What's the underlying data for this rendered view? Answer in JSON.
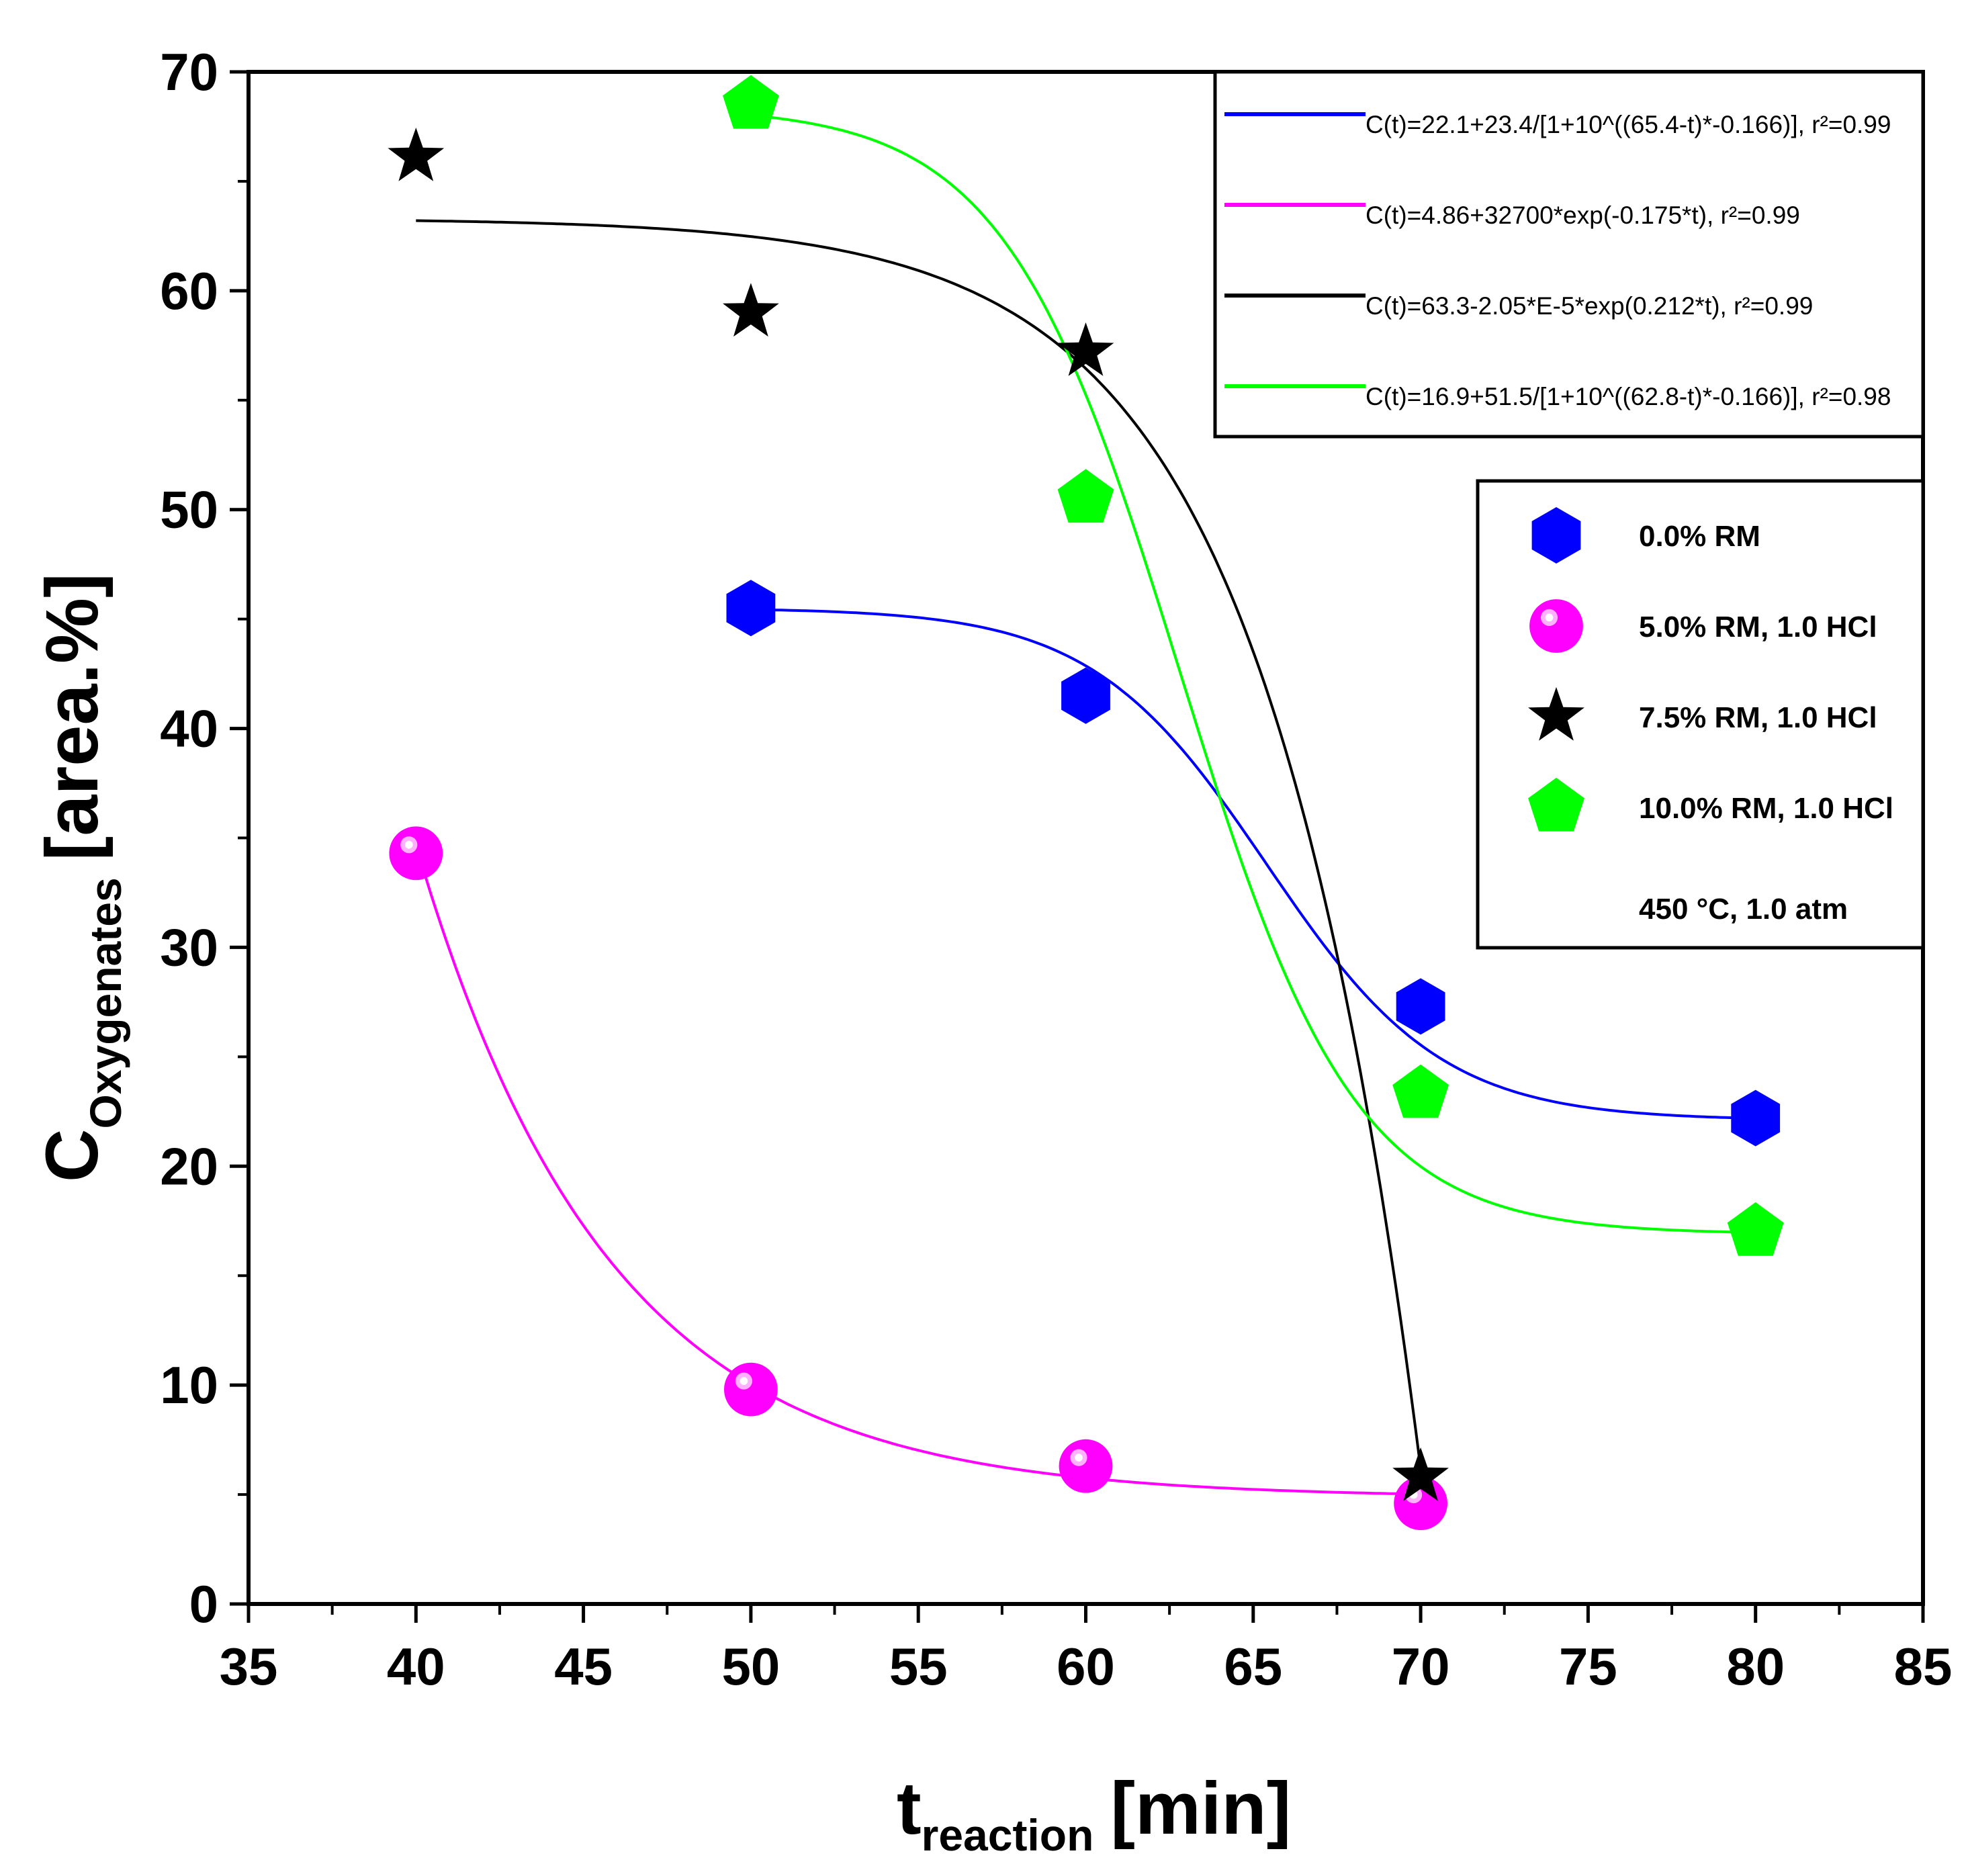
{
  "chart_data": {
    "type": "scatter",
    "xlabel": {
      "main": "t",
      "sub": "reaction",
      "unit": "[min]"
    },
    "ylabel": {
      "main": "C",
      "sub": "Oxygenates",
      "unit": "[area.%]"
    },
    "xlim": [
      35,
      85
    ],
    "ylim": [
      0,
      70
    ],
    "xticks": [
      "35",
      "40",
      "45",
      "50",
      "55",
      "60",
      "65",
      "70",
      "75",
      "80",
      "85"
    ],
    "yticks": [
      "0",
      "10",
      "20",
      "30",
      "40",
      "50",
      "60",
      "70"
    ],
    "grid": false,
    "series": [
      {
        "name": "0.0% RM",
        "color": "#0000ff",
        "marker": "hexagon",
        "x": [
          50,
          60,
          70,
          80
        ],
        "y": [
          45.5,
          41.5,
          27.3,
          22.2
        ],
        "fit": {
          "label": "C(t)=22.1+23.4/[1+10^((65.4-t)*-0.166)], r²=0.99",
          "type": "logistic",
          "A2": 22.1,
          "A1add": 23.4,
          "x0": 65.4,
          "p": -0.166,
          "range": [
            50,
            80
          ]
        }
      },
      {
        "name": "5.0% RM, 1.0 HCl",
        "color": "#ff00ff",
        "marker": "sphere",
        "x": [
          40,
          50,
          60,
          70
        ],
        "y": [
          34.3,
          9.8,
          6.3,
          4.6
        ],
        "fit": {
          "label": "C(t)=4.86+32700*exp(-0.175*t), r²=0.99",
          "type": "exp",
          "a": 4.86,
          "b": 32700,
          "k": -0.175,
          "range": [
            40,
            70
          ]
        }
      },
      {
        "name": "7.5% RM, 1.0 HCl",
        "color": "#000000",
        "marker": "star",
        "x": [
          40,
          50,
          60,
          70
        ],
        "y": [
          66.1,
          59.0,
          57.2,
          5.8
        ],
        "fit": {
          "label": "C(t)=63.3-2.05*E-5*exp(0.212*t), r²=0.99",
          "type": "exp",
          "a": 63.3,
          "b": -2.05e-05,
          "k": 0.212,
          "range": [
            40,
            70
          ]
        }
      },
      {
        "name": "10.0% RM, 1.0 HCl",
        "color": "#00ff00",
        "marker": "pentagon",
        "x": [
          50,
          60,
          70,
          80
        ],
        "y": [
          68.5,
          50.5,
          23.3,
          17.0
        ],
        "fit": {
          "label": "C(t)=16.9+51.5/[1+10^((62.8-t)*-0.166)], r²=0.98",
          "type": "logistic",
          "A2": 16.9,
          "A1add": 51.5,
          "x0": 62.8,
          "p": -0.166,
          "range": [
            50,
            80
          ]
        }
      }
    ],
    "annotation": "450 °C, 1.0 atm",
    "legend_placement": "top-right"
  }
}
